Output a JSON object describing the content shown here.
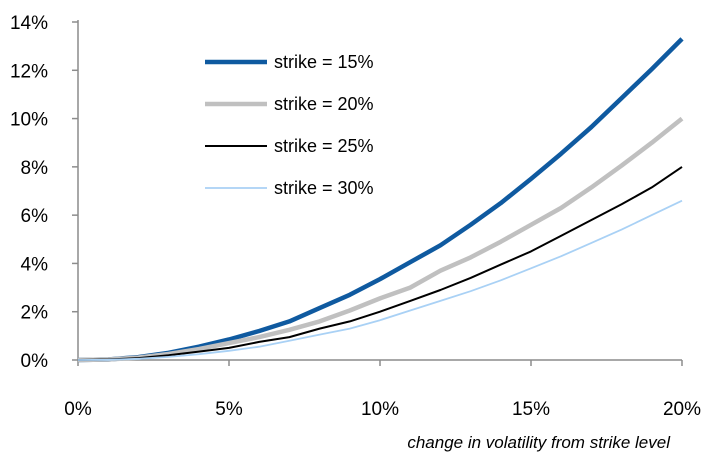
{
  "chart_data": {
    "type": "line",
    "xlabel": "change in volatility from strike level",
    "ylabel": "",
    "xlim": [
      0,
      20
    ],
    "ylim": [
      0,
      14
    ],
    "x_ticks": [
      0,
      5,
      10,
      15,
      20
    ],
    "x_tick_labels": [
      "0%",
      "5%",
      "10%",
      "15%",
      "20%"
    ],
    "y_ticks": [
      0,
      2,
      4,
      6,
      8,
      10,
      12,
      14
    ],
    "y_tick_labels": [
      "0%",
      "2%",
      "4%",
      "6%",
      "8%",
      "10%",
      "12%",
      "14%"
    ],
    "grid": false,
    "legend_position": "top-left",
    "x": [
      0,
      1,
      2,
      3,
      4,
      5,
      6,
      7,
      8,
      9,
      10,
      11,
      12,
      13,
      14,
      15,
      16,
      17,
      18,
      19,
      20
    ],
    "series": [
      {
        "name": "strike = 15%",
        "color": "#0f5aa0",
        "values": [
          0,
          0.02,
          0.12,
          0.3,
          0.55,
          0.85,
          1.2,
          1.6,
          2.15,
          2.7,
          3.35,
          4.05,
          4.75,
          5.6,
          6.5,
          7.5,
          8.55,
          9.65,
          10.85,
          12.05,
          13.3
        ]
      },
      {
        "name": "strike = 20%",
        "color": "#c0c0c0",
        "values": [
          0,
          0.02,
          0.1,
          0.25,
          0.45,
          0.7,
          0.95,
          1.25,
          1.6,
          2.05,
          2.55,
          3.0,
          3.7,
          4.25,
          4.9,
          5.6,
          6.3,
          7.15,
          8.05,
          9.0,
          10.0
        ]
      },
      {
        "name": "strike = 25%",
        "color": "#000000",
        "values": [
          0,
          0.02,
          0.08,
          0.2,
          0.35,
          0.5,
          0.75,
          0.95,
          1.3,
          1.6,
          2.0,
          2.45,
          2.9,
          3.4,
          3.95,
          4.5,
          5.15,
          5.8,
          6.45,
          7.15,
          8.0
        ]
      },
      {
        "name": "strike = 30%",
        "color": "#a9d1f5",
        "values": [
          0,
          0.01,
          0.05,
          0.13,
          0.24,
          0.38,
          0.55,
          0.8,
          1.05,
          1.3,
          1.65,
          2.05,
          2.45,
          2.85,
          3.3,
          3.8,
          4.3,
          4.85,
          5.4,
          6.0,
          6.6
        ]
      }
    ]
  }
}
